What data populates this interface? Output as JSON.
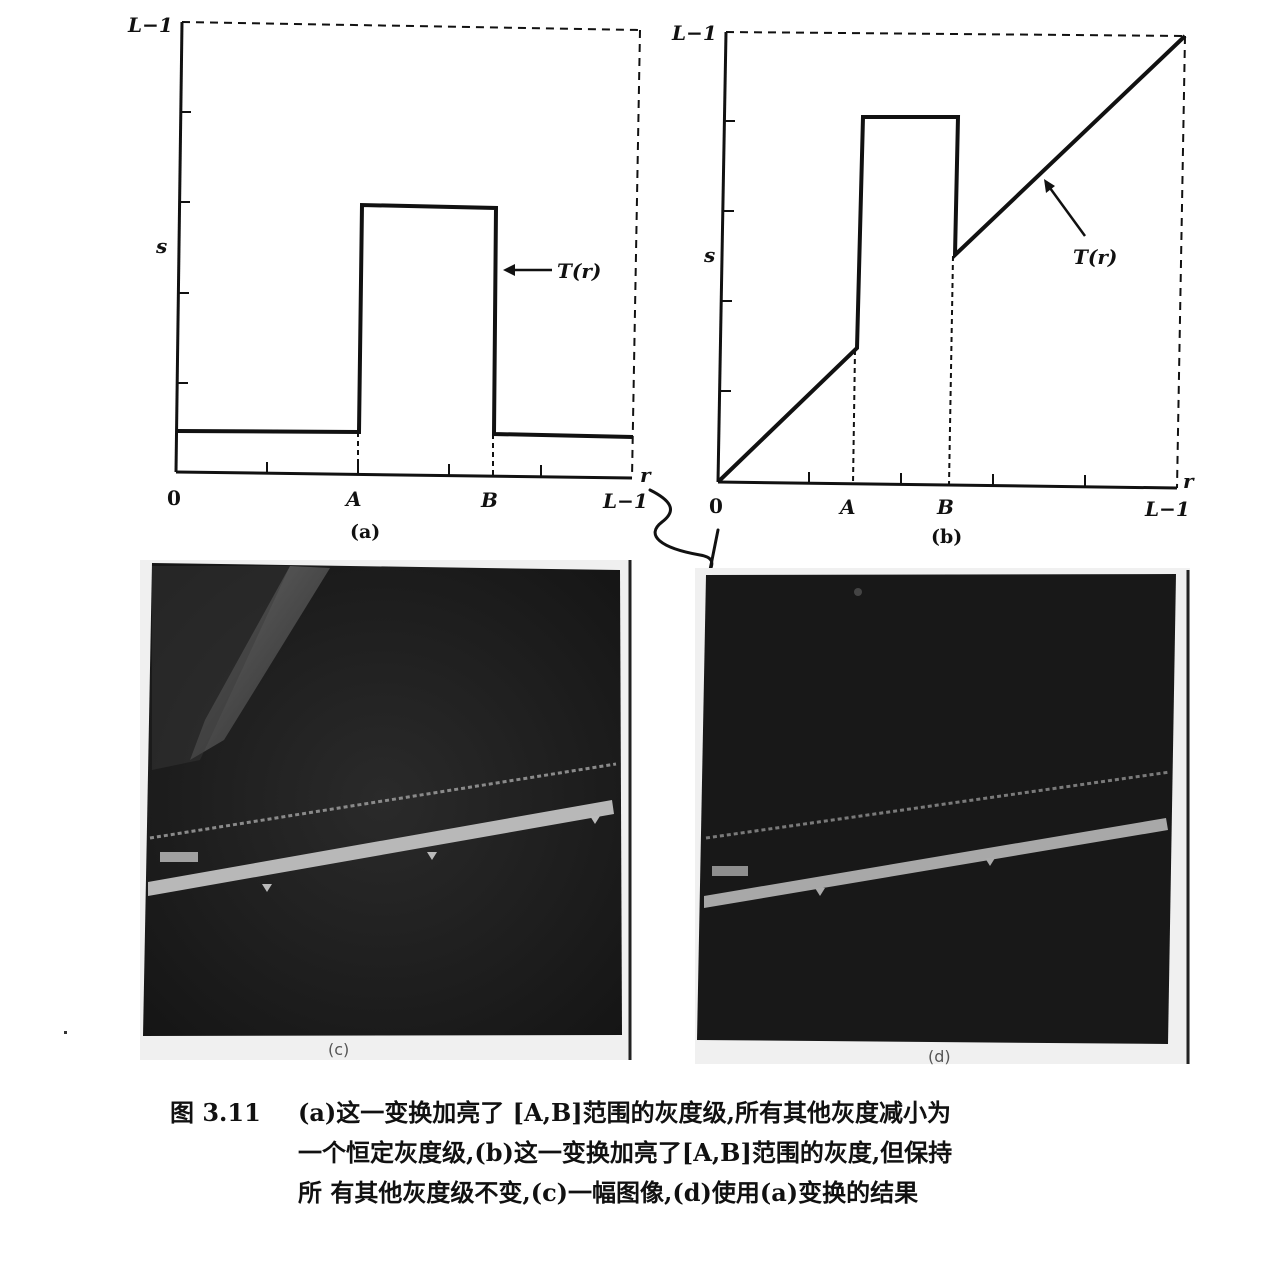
{
  "chart_data": [
    {
      "panel": "(a)",
      "type": "line",
      "xlabel": "r",
      "ylabel": "s",
      "x_tick_labels": [
        "0",
        "A",
        "B",
        "L−1"
      ],
      "y_tick_labels": [
        "L−1"
      ],
      "curve_label": "T(r)",
      "series": [
        {
          "name": "T(r)",
          "points": [
            [
              "0",
              "low"
            ],
            [
              "A",
              "low"
            ],
            [
              "A",
              "high"
            ],
            [
              "B",
              "high"
            ],
            [
              "B",
              "low"
            ],
            [
              "L−1",
              "low"
            ]
          ]
        }
      ]
    },
    {
      "panel": "(b)",
      "type": "line",
      "xlabel": "r",
      "ylabel": "s",
      "x_tick_labels": [
        "0",
        "A",
        "B",
        "L−1"
      ],
      "y_tick_labels": [
        "L−1"
      ],
      "curve_label": "T(r)",
      "series": [
        {
          "name": "T(r)",
          "points": [
            [
              "0",
              "0"
            ],
            [
              "A",
              "r"
            ],
            [
              "A",
              "high"
            ],
            [
              "B",
              "high"
            ],
            [
              "B",
              "r"
            ],
            [
              "L−1",
              "L−1"
            ]
          ]
        }
      ]
    }
  ],
  "panels": {
    "a": {
      "label": "(a)",
      "y_top": "L−1",
      "s_label": "s",
      "curve_label": "T(r)",
      "x0": "0",
      "xA": "A",
      "xB": "B",
      "xL": "L−1",
      "r_label": "r"
    },
    "b": {
      "label": "(b)",
      "y_top": "L−1",
      "s_label": "s",
      "curve_label": "T(r)",
      "x0": "0",
      "xA": "A",
      "xB": "B",
      "xL": "L−1",
      "r_label": "r"
    },
    "c": {
      "label": "(c)"
    },
    "d": {
      "label": "(d)"
    }
  },
  "caption": {
    "figure_number": "图 3.11",
    "lines": [
      "(a)这一变换加亮了 [A,B]范围的灰度级,所有其他灰度减小为",
      "一个恒定灰度级,(b)这一变换加亮了[A,B]范围的灰度,但保持",
      "所 有其他灰度级不变,(c)一幅图像,(d)使用(a)变换的结果"
    ]
  }
}
